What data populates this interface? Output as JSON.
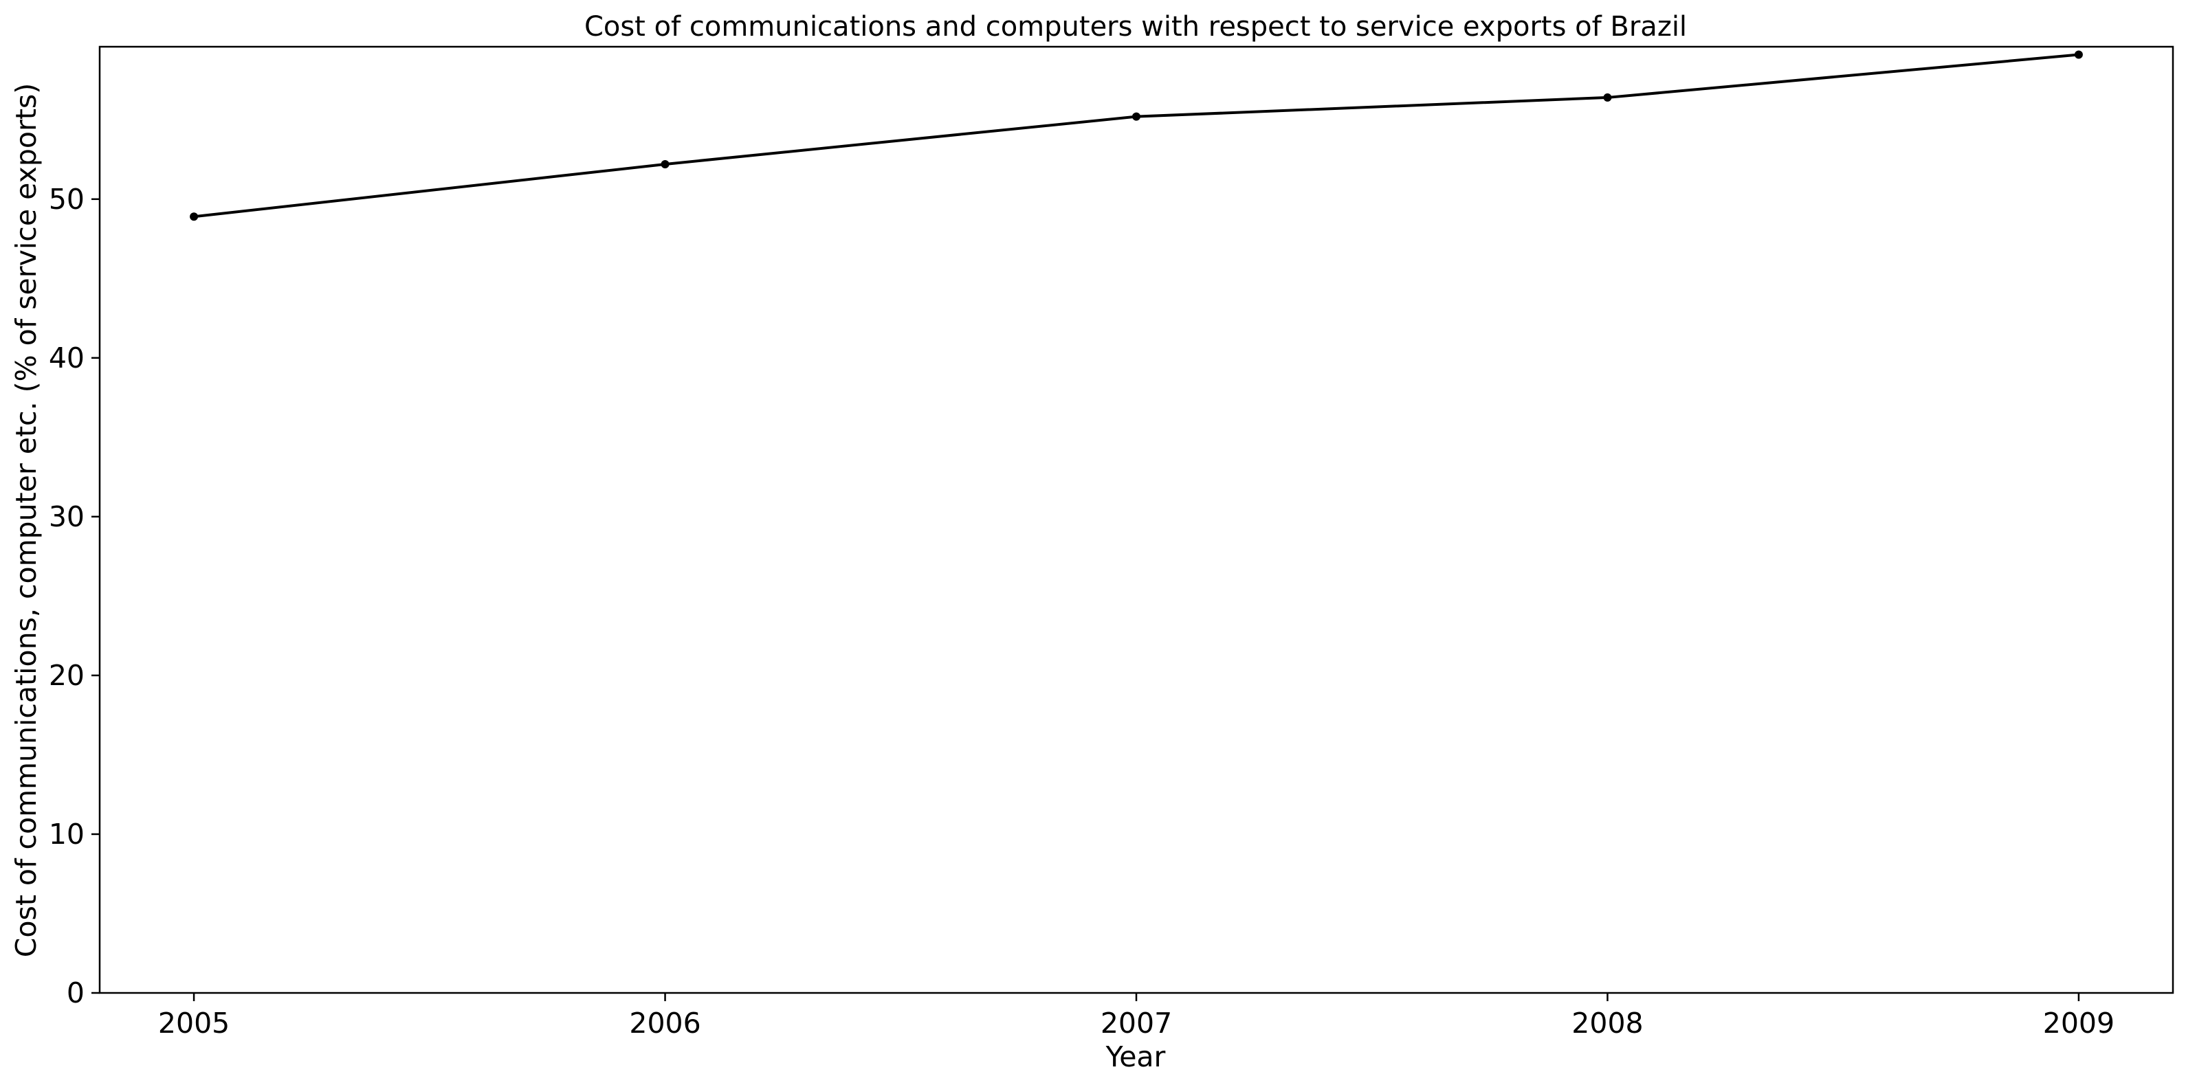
{
  "chart_data": {
    "type": "line",
    "title": "Cost of communications and computers with respect to service exports of Brazil",
    "xlabel": "Year",
    "ylabel": "Cost of communications, computer etc. (% of service exports)",
    "x": [
      2005,
      2006,
      2007,
      2008,
      2009
    ],
    "x_tick_labels": [
      "2005",
      "2006",
      "2007",
      "2008",
      "2009"
    ],
    "xlim": [
      2004.8,
      2009.2
    ],
    "ylim": [
      0,
      59.6
    ],
    "y_ticks": [
      0,
      10,
      20,
      30,
      40,
      50
    ],
    "y_tick_labels": [
      "0",
      "10",
      "20",
      "30",
      "40",
      "50"
    ],
    "series": [
      {
        "values": [
          48.9,
          52.2,
          55.2,
          56.4,
          59.1
        ],
        "color": "#000000",
        "marker": "circle"
      }
    ],
    "grid": false,
    "legend": "none"
  }
}
